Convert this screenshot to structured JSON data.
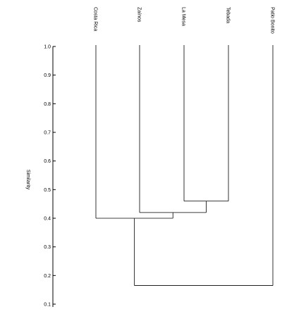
{
  "chart_data": {
    "type": "dendrogram",
    "ylabel": "Similarity",
    "ylim": [
      0.1,
      1.0
    ],
    "yticks": [
      "1.0",
      "0.9",
      "0.8",
      "0.7",
      "0.6",
      "0.5",
      "0.4",
      "0.3",
      "0.2",
      "0.1"
    ],
    "leaves": [
      "Costa Rica",
      "Zaínos",
      "La Mesa",
      "Tebada",
      "Patio Bonito"
    ],
    "merges": [
      {
        "members": [
          "La Mesa",
          "Tebada"
        ],
        "similarity": 0.46
      },
      {
        "members": [
          "Zaínos",
          "La Mesa",
          "Tebada"
        ],
        "similarity": 0.42
      },
      {
        "members": [
          "Costa Rica",
          "Zaínos",
          "La Mesa",
          "Tebada"
        ],
        "similarity": 0.4
      },
      {
        "members": [
          "Costa Rica",
          "Zaínos",
          "La Mesa",
          "Tebada",
          "Patio Bonito"
        ],
        "similarity": 0.165
      }
    ],
    "grid": false
  }
}
